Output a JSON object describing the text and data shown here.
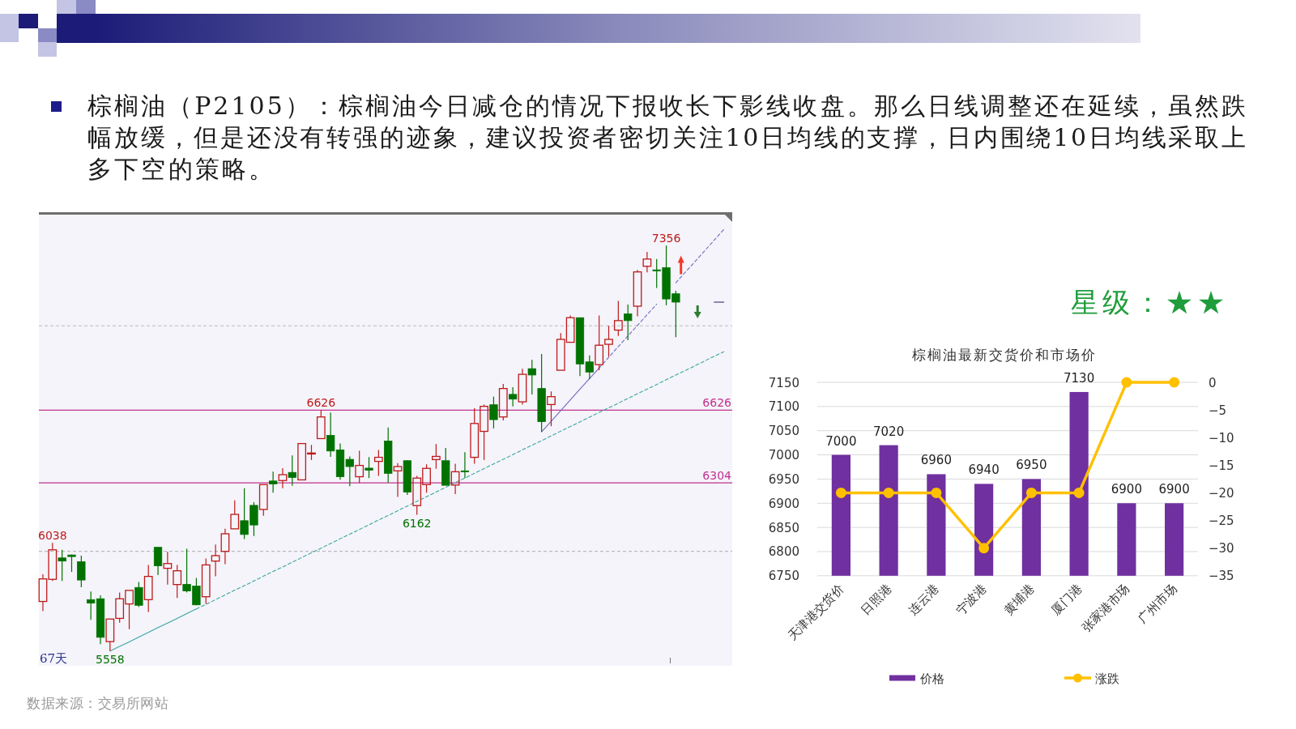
{
  "chart_data": [
    {
      "type": "other",
      "title": "棕榈油（P2105）：棕榈油今日减仓的情况下报收长下影线收盘。那么日线调整还在延续，虽然跌幅放缓，但是还没有转强的迹象，建议投资者密切关注10日均线的支撑，日内围绕10日均线采取上多下空的策略。",
      "annotations": [
        "星级：★★",
        "数据来源：交易所网站"
      ]
    },
    {
      "type": "candlestick",
      "categories": [
        null,
        null,
        null,
        null,
        null,
        null,
        null,
        null,
        null,
        null,
        null,
        null,
        null,
        null,
        null,
        null,
        null,
        null,
        null,
        null,
        null,
        null,
        null,
        null,
        null,
        null,
        null,
        null,
        null,
        null,
        null,
        null,
        null,
        null,
        null,
        null,
        null,
        null,
        null,
        null,
        null,
        null,
        null,
        null,
        null,
        null,
        null,
        null,
        null,
        null,
        null,
        null,
        null,
        null,
        null,
        null,
        null,
        null,
        null,
        null,
        null,
        null,
        null,
        null,
        null,
        null,
        null,
        null,
        null,
        null,
        null,
        null
      ],
      "ohlc": [
        [
          5778,
          5898,
          5735,
          5878
        ],
        [
          5876,
          6038,
          5869,
          6007
        ],
        [
          5971,
          6007,
          5869,
          5957
        ],
        [
          5984,
          5986,
          5909,
          5977
        ],
        [
          5954,
          5981,
          5841,
          5873
        ],
        [
          5786,
          5822,
          5696,
          5771
        ],
        [
          5790,
          5805,
          5589,
          5619
        ],
        [
          5600,
          5704,
          5558,
          5700
        ],
        [
          5703,
          5818,
          5684,
          5790
        ],
        [
          5767,
          5831,
          5655,
          5827
        ],
        [
          5840,
          5864,
          5754,
          5761
        ],
        [
          5786,
          5940,
          5731,
          5889
        ],
        [
          6018,
          6018,
          5895,
          5936
        ],
        [
          5925,
          5998,
          5853,
          5946
        ],
        [
          5853,
          5940,
          5793,
          5914
        ],
        [
          5854,
          6012,
          5818,
          5825
        ],
        [
          5846,
          5882,
          5761,
          5763
        ],
        [
          5799,
          5968,
          5767,
          5940
        ],
        [
          5957,
          6030,
          5889,
          5981
        ],
        [
          6000,
          6100,
          5943,
          6078
        ],
        [
          6100,
          6226,
          6100,
          6164
        ],
        [
          6136,
          6280,
          6055,
          6075
        ],
        [
          6204,
          6218,
          6068,
          6117
        ],
        [
          6186,
          6301,
          6158,
          6296
        ],
        [
          6312,
          6354,
          6260,
          6299
        ],
        [
          6314,
          6369,
          6280,
          6340
        ],
        [
          6350,
          6425,
          6291,
          6328
        ],
        [
          6317,
          6482,
          6317,
          6478
        ],
        [
          6432,
          6472,
          6405,
          6436
        ],
        [
          6500,
          6626,
          6500,
          6596
        ],
        [
          6514,
          6616,
          6419,
          6445
        ],
        [
          6450,
          6478,
          6318,
          6331
        ],
        [
          6408,
          6421,
          6289,
          6376
        ],
        [
          6331,
          6446,
          6303,
          6381
        ],
        [
          6369,
          6418,
          6325,
          6360
        ],
        [
          6399,
          6450,
          6335,
          6417
        ],
        [
          6489,
          6549,
          6305,
          6346
        ],
        [
          6357,
          6391,
          6241,
          6376
        ],
        [
          6402,
          6404,
          6250,
          6263
        ],
        [
          6203,
          6335,
          6162,
          6325
        ],
        [
          6296,
          6386,
          6260,
          6368
        ],
        [
          6407,
          6476,
          6366,
          6421
        ],
        [
          6402,
          6459,
          6293,
          6293
        ],
        [
          6294,
          6389,
          6254,
          6353
        ],
        [
          6357,
          6440,
          6325,
          6353
        ],
        [
          6417,
          6635,
          6389,
          6567
        ],
        [
          6532,
          6651,
          6405,
          6643
        ],
        [
          6650,
          6686,
          6545,
          6584
        ],
        [
          6596,
          6742,
          6581,
          6722
        ],
        [
          6696,
          6728,
          6643,
          6675
        ],
        [
          6663,
          6810,
          6651,
          6785
        ],
        [
          6810,
          6849,
          6696,
          6782
        ],
        [
          6722,
          6875,
          6530,
          6575
        ],
        [
          6651,
          6709,
          6555,
          6686
        ],
        [
          6803,
          6968,
          6803,
          6940
        ],
        [
          6927,
          7046,
          6927,
          7036
        ],
        [
          7036,
          7036,
          6777,
          6831
        ],
        [
          6840,
          6869,
          6764,
          6795
        ],
        [
          6828,
          7046,
          6803,
          6914
        ],
        [
          6918,
          7000,
          6863,
          6940
        ],
        [
          6981,
          7110,
          6955,
          7023
        ],
        [
          7053,
          7094,
          6936,
          7023
        ],
        [
          7087,
          7248,
          7042,
          7239
        ],
        [
          7264,
          7328,
          7237,
          7296
        ],
        [
          7248,
          7296,
          7168,
          7244
        ],
        [
          7258,
          7356,
          7091,
          7119
        ],
        [
          7142,
          7155,
          6950,
          7105
        ],
        null,
        null,
        null,
        null,
        null
      ],
      "colors": [
        "#bd1a1a",
        "#bd1a1a",
        "#007200",
        "#007200",
        "#007200",
        "#007200",
        "#007200",
        "#bd1a1a",
        "#bd1a1a",
        "#bd1a1a",
        "#007200",
        "#bd1a1a",
        "#007200",
        "#bd1a1a",
        "#bd1a1a",
        "#007200",
        "#007200",
        "#bd1a1a",
        "#bd1a1a",
        "#bd1a1a",
        "#bd1a1a",
        "#007200",
        "#007200",
        "#bd1a1a",
        "#007200",
        "#bd1a1a",
        "#007200",
        "#bd1a1a",
        "#bd1a1a",
        "#bd1a1a",
        "#007200",
        "#007200",
        "#007200",
        "#bd1a1a",
        "#007200",
        "#bd1a1a",
        "#007200",
        "#bd1a1a",
        "#007200",
        "#bd1a1a",
        "#bd1a1a",
        "#bd1a1a",
        "#007200",
        "#bd1a1a",
        "#007200",
        "#bd1a1a",
        "#bd1a1a",
        "#007200",
        "#bd1a1a",
        "#007200",
        "#bd1a1a",
        "#007200",
        "#007200",
        "#bd1a1a",
        "#bd1a1a",
        "#bd1a1a",
        "#007200",
        "#007200",
        "#bd1a1a",
        "#bd1a1a",
        "#bd1a1a",
        "#007200",
        "#bd1a1a",
        "#bd1a1a",
        "#007200",
        "#007200",
        "#007200",
        null,
        null,
        null,
        null,
        null
      ],
      "series": [
        {
          "type": "line",
          "color": "#3aa69e",
          "line_style": "solid",
          "values": [
            null,
            null,
            null,
            null,
            null,
            null,
            null,
            5558,
            5579,
            5599,
            5620,
            5641,
            5662,
            5682,
            5703,
            5724,
            5745,
            null,
            null,
            null,
            null,
            null,
            null,
            null,
            null,
            null,
            null,
            null,
            null,
            null,
            null,
            null,
            null,
            null,
            null,
            null,
            null,
            null,
            null,
            null,
            null,
            null,
            null,
            null,
            null,
            null,
            null,
            null,
            null,
            null,
            null,
            null,
            null,
            null,
            null,
            null,
            null,
            null,
            null,
            null,
            null,
            null,
            null,
            null,
            null,
            null,
            null,
            null,
            null,
            null,
            null,
            null
          ]
        },
        {
          "type": "line",
          "color": "#3aa69e",
          "line_style": "dashed",
          "values": [
            null,
            null,
            null,
            null,
            null,
            null,
            null,
            null,
            null,
            null,
            null,
            null,
            null,
            null,
            null,
            null,
            5745,
            5765,
            5786,
            5807,
            5828,
            5848,
            5869,
            5890,
            5911,
            5931,
            5952,
            5973,
            5994,
            6014,
            6035,
            6056,
            6076,
            6097,
            6118,
            6139,
            6159,
            6180,
            6201,
            6222,
            6242,
            6263,
            6284,
            6305,
            6325,
            6346,
            6367,
            6388,
            6408,
            6429,
            6450,
            6471,
            6491,
            6512,
            6533,
            6554,
            6574,
            6595,
            6616,
            6636,
            6657,
            6678,
            6699,
            6719,
            6740,
            6761,
            6782,
            6802,
            6823,
            6844,
            6865,
            6885
          ]
        },
        {
          "type": "line",
          "color": "#7468c0",
          "line_style": "solid",
          "values": [
            null,
            null,
            null,
            null,
            null,
            null,
            null,
            null,
            null,
            null,
            null,
            null,
            null,
            null,
            null,
            null,
            null,
            null,
            null,
            null,
            null,
            null,
            null,
            null,
            null,
            null,
            null,
            null,
            null,
            null,
            null,
            null,
            null,
            null,
            null,
            null,
            null,
            null,
            null,
            null,
            null,
            null,
            null,
            null,
            null,
            null,
            null,
            null,
            null,
            null,
            null,
            null,
            6530,
            6577,
            6624,
            6672,
            6719,
            6766,
            6813,
            null,
            null,
            null,
            null,
            null,
            null,
            null,
            null,
            null,
            null,
            null,
            null,
            null
          ]
        },
        {
          "type": "line",
          "color": "#7468c0",
          "line_style": "dashed",
          "values": [
            null,
            null,
            null,
            null,
            null,
            null,
            null,
            null,
            null,
            null,
            null,
            null,
            null,
            null,
            null,
            null,
            null,
            null,
            null,
            null,
            null,
            null,
            null,
            null,
            null,
            null,
            null,
            null,
            null,
            null,
            null,
            null,
            null,
            null,
            null,
            null,
            null,
            null,
            null,
            null,
            null,
            null,
            null,
            null,
            null,
            null,
            null,
            null,
            null,
            null,
            null,
            null,
            null,
            null,
            null,
            null,
            null,
            null,
            6813,
            6860,
            6908,
            6955,
            7002,
            7049,
            7096,
            null,
            7191,
            7238,
            7285,
            7332,
            7380,
            7427
          ]
        },
        {
          "type": "line",
          "color": "#1c1c6e",
          "line_style": "solid",
          "values": [
            null,
            null,
            null,
            null,
            null,
            null,
            null,
            null,
            null,
            null,
            null,
            null,
            null,
            null,
            null,
            null,
            null,
            null,
            null,
            null,
            null,
            null,
            null,
            null,
            null,
            null,
            null,
            null,
            null,
            null,
            null,
            null,
            null,
            null,
            null,
            null,
            null,
            null,
            null,
            null,
            null,
            null,
            null,
            null,
            null,
            null,
            null,
            null,
            null,
            null,
            null,
            null,
            null,
            null,
            null,
            null,
            null,
            null,
            null,
            null,
            null,
            null,
            null,
            null,
            null,
            null,
            null,
            null,
            null,
            null,
            7105,
            7105
          ]
        }
      ],
      "ref_lines": [
        {
          "axis": "y",
          "value": 7000,
          "color": "#b9b9bf",
          "line_style": "dashed"
        },
        {
          "axis": "y",
          "value": 6000,
          "color": "#b9b9bf",
          "line_style": "dashed"
        },
        {
          "axis": "y",
          "value": 6626,
          "label": "6626",
          "color": "#c2318f"
        },
        {
          "axis": "y",
          "value": 6304,
          "label": "6304",
          "color": "#c2318f"
        }
      ],
      "annotations": [
        {
          "text": "7356",
          "y": 7356
        },
        {
          "text": "6626",
          "y": 6626
        },
        {
          "text": "6162",
          "y": 6162
        },
        {
          "text": "6038",
          "y": 6038
        },
        {
          "text": "5558",
          "y": 5558
        },
        "67天"
      ]
    },
    {
      "type": "bar",
      "title": "棕榈油最新交货价和市场价",
      "categories": [
        "天津港交货价",
        "日照港",
        "连云港",
        "宁波港",
        "黄埔港",
        "厦门港",
        "张家港市场",
        "广州市场"
      ],
      "series": [
        {
          "name": "价格",
          "type": "bar",
          "color": "#7030a0",
          "values": [
            7000,
            7020,
            6960,
            6940,
            6950,
            7130,
            6900,
            6900
          ],
          "value_labels": [
            "7000",
            "7020",
            "6960",
            "6940",
            "6950",
            "7130",
            "6900",
            "6900"
          ]
        },
        {
          "name": "涨跌",
          "type": "line",
          "axis": "y2",
          "color": "#ffc000",
          "marker": "circle",
          "values": [
            -20,
            -20,
            -20,
            -30,
            -20,
            -20,
            0,
            0
          ]
        }
      ],
      "ylim": [
        6750,
        7150
      ],
      "yticks": [
        6750,
        6800,
        6850,
        6900,
        6950,
        7000,
        7050,
        7100,
        7150
      ],
      "y2lim": [
        -35,
        0
      ],
      "y2ticks": [
        0,
        {
          "value": -5,
          "label": "−5"
        },
        {
          "value": -10,
          "label": "−10"
        },
        {
          "value": -15,
          "label": "−15"
        },
        {
          "value": -20,
          "label": "−20"
        },
        {
          "value": -25,
          "label": "−25"
        },
        {
          "value": -30,
          "label": "−30"
        },
        {
          "value": -35,
          "label": "−35"
        }
      ],
      "grid": "y",
      "legend": "bottom"
    }
  ]
}
